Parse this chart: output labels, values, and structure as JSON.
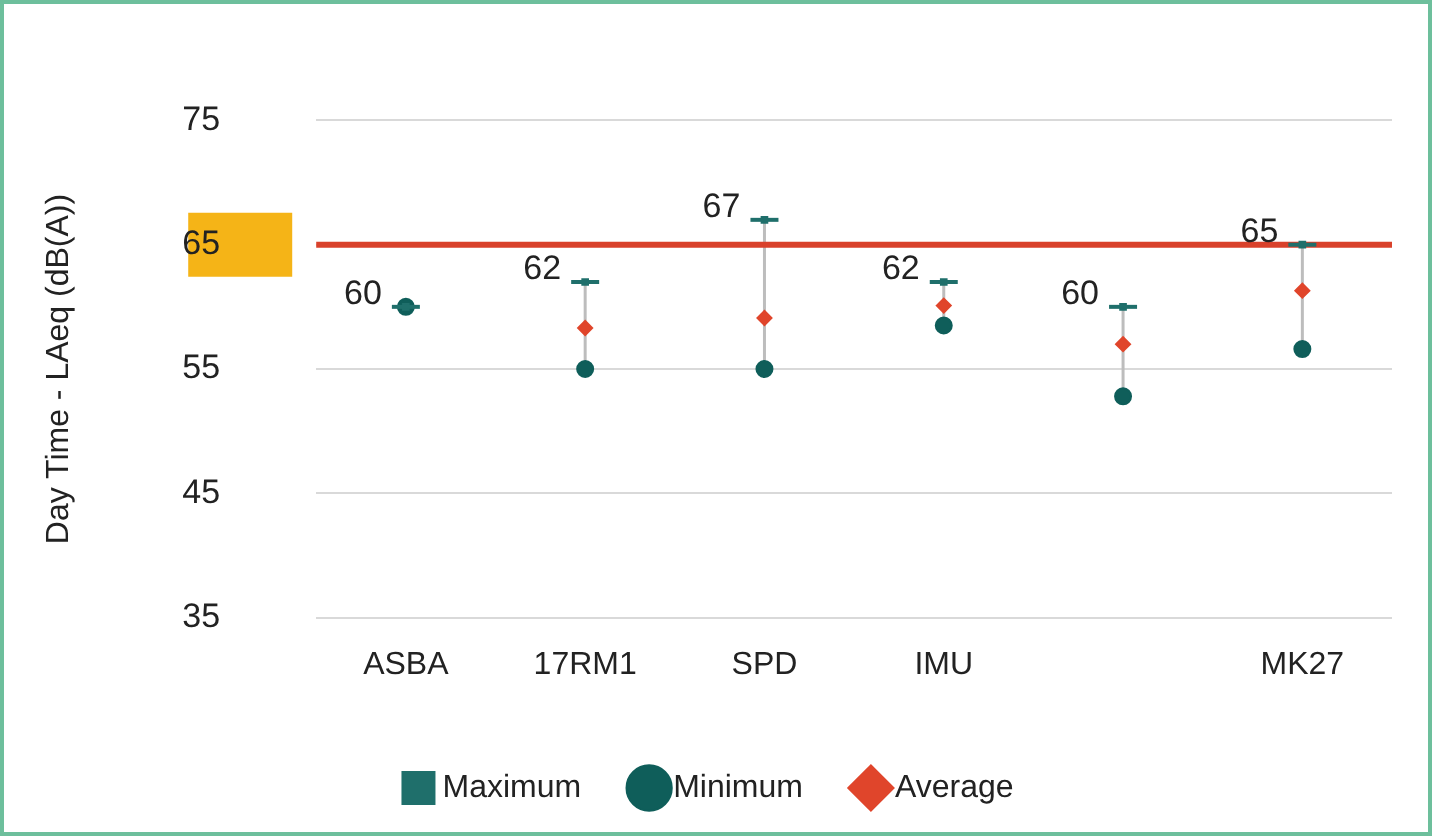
{
  "chart_data": {
    "type": "scatter",
    "ylabel": "Day Time - LAeq (dB(A))",
    "categories": [
      "ASBA",
      "17RM1",
      "SPD",
      "IMU",
      null,
      "MK27"
    ],
    "series": [
      {
        "name": "Maximum",
        "color": "#1f6f6b",
        "marker": "square",
        "data_labels": true,
        "values": [
          60,
          62,
          67,
          62,
          60,
          65
        ]
      },
      {
        "name": "Minimum",
        "color": "#0f5e5a",
        "marker": "circle",
        "values": [
          60,
          55,
          55,
          58.5,
          52.8,
          56.6
        ]
      },
      {
        "name": "Average",
        "color": "#e0452b",
        "marker": "diamond",
        "values": [
          null,
          58.3,
          59.1,
          60.1,
          57,
          61.3
        ]
      }
    ],
    "ylim": [
      35,
      75
    ],
    "yticks": [
      35,
      45,
      55,
      65,
      75
    ],
    "grid": "y",
    "legend": "bottom",
    "ref_lines": [
      {
        "axis": "y",
        "value": 65,
        "color": "#d9412b"
      }
    ]
  }
}
